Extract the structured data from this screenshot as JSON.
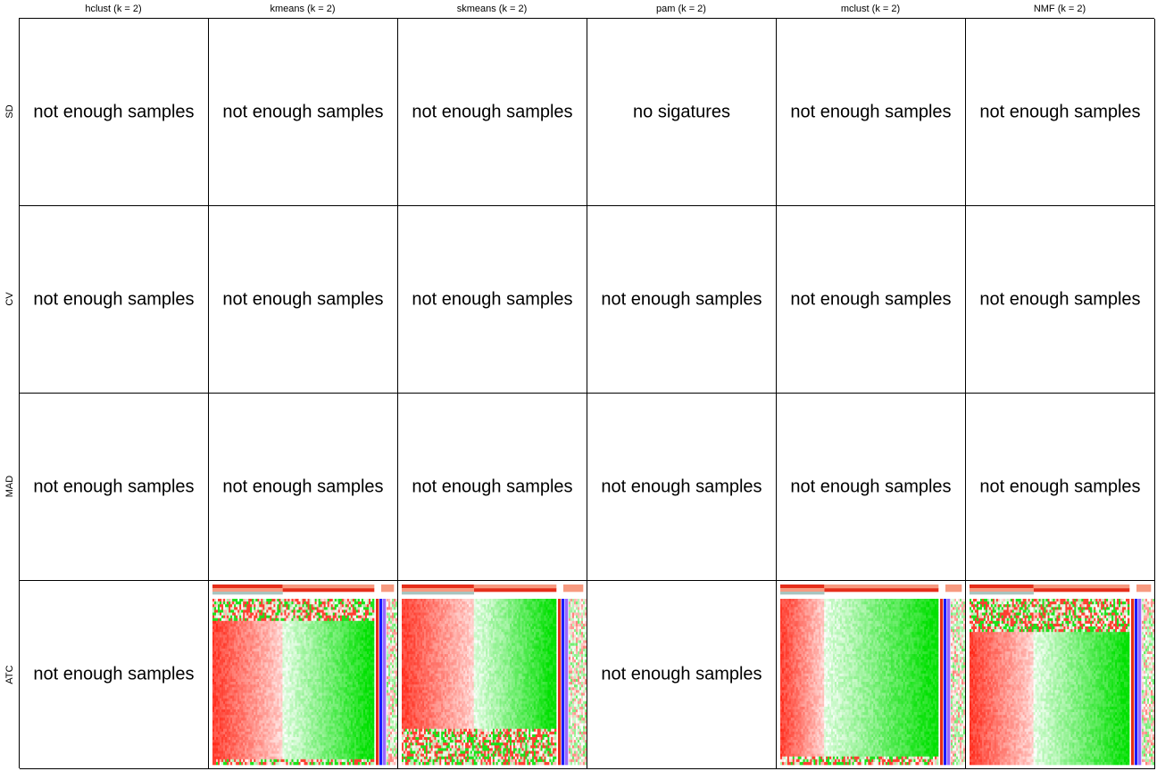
{
  "columns": [
    "hclust (k = 2)",
    "kmeans (k = 2)",
    "skmeans (k = 2)",
    "pam (k = 2)",
    "mclust (k = 2)",
    "NMF (k = 2)"
  ],
  "rows": [
    "SD",
    "CV",
    "MAD",
    "ATC"
  ],
  "messages": {
    "not_enough": "not enough samples",
    "no_signatures": "no sigatures"
  },
  "colors": {
    "border": "#000000",
    "high": "#ff2a1a",
    "mid": "#ffffff",
    "low": "#00e000",
    "annot_dark": "#e62e1a",
    "annot_light": "#f79a80",
    "annot_blue": "#1a1aff",
    "annot_purple": "#9966ff",
    "annot_grey": "#a9c4c0"
  },
  "chart_data": {
    "type": "heatmap",
    "grid": [
      [
        "not_enough",
        "not_enough",
        "not_enough",
        "no_signatures",
        "not_enough",
        "not_enough"
      ],
      [
        "not_enough",
        "not_enough",
        "not_enough",
        "not_enough",
        "not_enough",
        "not_enough"
      ],
      [
        "not_enough",
        "not_enough",
        "not_enough",
        "not_enough",
        "not_enough",
        "not_enough"
      ],
      [
        "not_enough",
        "heatmap",
        "heatmap",
        "not_enough",
        "heatmap",
        "heatmap"
      ]
    ],
    "heatmaps": {
      "1": {
        "class1_fraction": 0.43,
        "class2_fraction": 0.57,
        "extra_cols": 6,
        "noisy_top_rows": 0.14,
        "noisy_bottom_rows": 0.03
      },
      "2": {
        "class1_fraction": 0.47,
        "class2_fraction": 0.53,
        "extra_cols": 10,
        "noisy_top_rows": 0.0,
        "noisy_bottom_rows": 0.22
      },
      "4": {
        "class1_fraction": 0.28,
        "class2_fraction": 0.72,
        "extra_cols": 8,
        "noisy_top_rows": 0.0,
        "noisy_bottom_rows": 0.05
      },
      "5": {
        "class1_fraction": 0.4,
        "class2_fraction": 0.6,
        "extra_cols": 7,
        "noisy_top_rows": 0.2,
        "noisy_bottom_rows": 0.0
      }
    }
  }
}
